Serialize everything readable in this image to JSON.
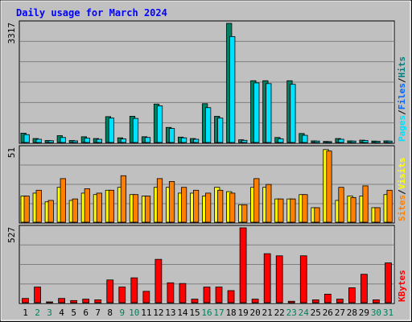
{
  "chart_data": {
    "type": "bar",
    "title": "Daily usage for March 2024",
    "categories": [
      "1",
      "2",
      "3",
      "4",
      "5",
      "6",
      "7",
      "8",
      "9",
      "10",
      "11",
      "12",
      "13",
      "14",
      "15",
      "16",
      "17",
      "18",
      "19",
      "20",
      "21",
      "22",
      "23",
      "24",
      "25",
      "26",
      "27",
      "28",
      "29",
      "30",
      "31"
    ],
    "weekend_days": [
      "2",
      "3",
      "9",
      "10",
      "16",
      "17",
      "23",
      "24",
      "30",
      "31"
    ],
    "panels": [
      {
        "name": "hits_files_pages",
        "max_label": "3317",
        "ymax": 3317,
        "legend": [
          {
            "text": "Pages",
            "color": "#00e0ff"
          },
          {
            "text": "/",
            "color": "#000000"
          },
          {
            "text": "Files",
            "color": "#0066ff"
          },
          {
            "text": "/",
            "color": "#000000"
          },
          {
            "text": "Hits",
            "color": "#008080"
          }
        ],
        "series": [
          {
            "name": "Hits",
            "color": "#008060",
            "values": [
              260,
              110,
              55,
              190,
              55,
              160,
              110,
              720,
              130,
              730,
              160,
              1070,
              420,
              150,
              110,
              1080,
              730,
              3317,
              75,
              1720,
              1720,
              140,
              1720,
              250,
              45,
              30,
              110,
              45,
              65,
              40,
              45
            ]
          },
          {
            "name": "Pages",
            "color": "#00e0ff",
            "values": [
              220,
              90,
              50,
              140,
              45,
              120,
              90,
              680,
              100,
              670,
              140,
              1020,
              390,
              130,
              90,
              970,
              680,
              2950,
              60,
              1660,
              1640,
              100,
              1620,
              200,
              40,
              25,
              90,
              40,
              55,
              35,
              40
            ]
          }
        ]
      },
      {
        "name": "visits_sites",
        "max_label": "51",
        "ymax": 51,
        "legend": [
          {
            "text": "Sites",
            "color": "#ff8000"
          },
          {
            "text": "/",
            "color": "#000000"
          },
          {
            "text": "Visits",
            "color": "#ffff00"
          }
        ],
        "series": [
          {
            "name": "Visits",
            "color": "#ffff00",
            "values": [
              18,
              20,
              14,
              24,
              15,
              20,
              19,
              22,
              24,
              19,
              18,
              24,
              24,
              20,
              20,
              18,
              24,
              21,
              12,
              24,
              24,
              16,
              16,
              19,
              10,
              50,
              15,
              18,
              18,
              10,
              19
            ]
          },
          {
            "name": "Sites",
            "color": "#ff8000",
            "values": [
              18,
              22,
              15,
              30,
              16,
              23,
              20,
              22,
              32,
              19,
              18,
              30,
              28,
              24,
              22,
              20,
              22,
              20,
              12,
              30,
              26,
              16,
              16,
              19,
              10,
              49,
              24,
              17,
              25,
              10,
              22
            ]
          }
        ]
      },
      {
        "name": "kbytes",
        "max_label": "527",
        "ymax": 527,
        "legend": [
          {
            "text": "KBytes",
            "color": "#ff0000"
          }
        ],
        "series": [
          {
            "name": "KBytes",
            "color": "#ff0000",
            "values": [
              30,
              110,
              5,
              30,
              15,
              25,
              20,
              160,
              110,
              175,
              80,
              305,
              140,
              135,
              25,
              110,
              110,
              85,
              527,
              25,
              345,
              330,
              10,
              330,
              20,
              60,
              25,
              105,
              200,
              20,
              280
            ]
          }
        ]
      }
    ],
    "colors": {
      "background": "#c0c0c0",
      "plot_background": "#c0c0c0",
      "title": "#0000ff",
      "gridline": "#808080",
      "weekday_label": "#000000",
      "weekend_label": "#00805c"
    }
  }
}
